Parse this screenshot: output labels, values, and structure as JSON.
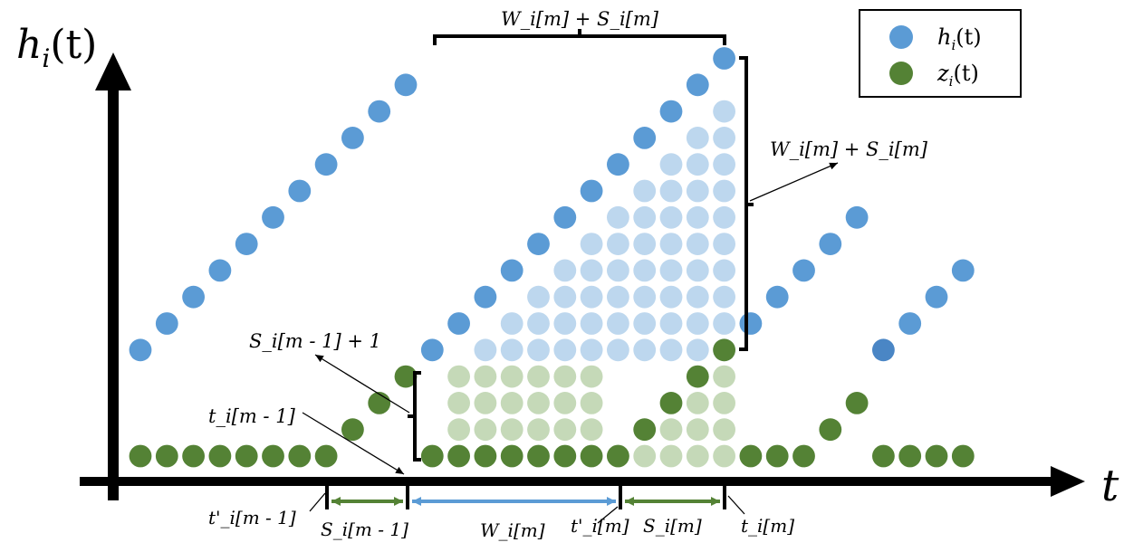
{
  "axes": {
    "y_label": "h",
    "y_label_sub": "i",
    "y_label_arg": "(t)",
    "x_label": "t"
  },
  "legend": {
    "items": [
      {
        "name": "h",
        "sub": "i",
        "arg": "(t)",
        "color": "#5b9bd5"
      },
      {
        "name": "z",
        "sub": "i",
        "arg": "(t)",
        "color": "#548235"
      }
    ]
  },
  "colors": {
    "h_dot": "#5b9bd5",
    "h_dot_faded": "#bdd7ee",
    "h_dot_dark": "#4a86c5",
    "z_dot": "#548235",
    "z_dot_faded": "#c5d9b8",
    "green_arrow": "#548235",
    "blue_arrow": "#5b9bd5"
  },
  "annotations": {
    "top_brace": "W_i[m] + S_i[m]",
    "right_brace": "W_i[m] + S_i[m]",
    "left_brace": "S_i[m - 1] + 1",
    "t_prev": "t_i[m - 1]"
  },
  "bottom_labels": {
    "t_prime_prev": "t'_i[m - 1]",
    "s_prev": "S_i[m - 1]",
    "w_m": "W_i[m]",
    "t_prime_m": "t'_i[m]",
    "s_m": "S_i[m]",
    "t_m": "t_i[m]"
  }
}
